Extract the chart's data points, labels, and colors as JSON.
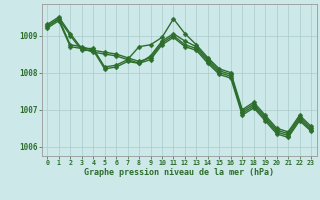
{
  "xlabel": "Graphe pression niveau de la mer (hPa)",
  "background_color": "#cce8e8",
  "grid_color": "#aacccc",
  "line_color": "#2d6e2d",
  "tick_label_color": "#2d6e2d",
  "hours": [
    0,
    1,
    2,
    3,
    4,
    5,
    6,
    7,
    8,
    9,
    10,
    11,
    12,
    13,
    14,
    15,
    16,
    17,
    18,
    19,
    20,
    21,
    22,
    23
  ],
  "line1": [
    1009.3,
    1009.5,
    1009.05,
    1008.65,
    1008.65,
    1008.15,
    1008.2,
    1008.35,
    1008.7,
    1008.75,
    1008.95,
    1009.45,
    1009.05,
    1008.75,
    1008.4,
    1008.1,
    1008.0,
    1007.0,
    1007.2,
    1006.85,
    1006.5,
    1006.4,
    1006.85,
    1006.55
  ],
  "line2": [
    1009.25,
    1009.45,
    1009.0,
    1008.6,
    1008.6,
    1008.1,
    1008.15,
    1008.3,
    1008.25,
    1008.45,
    1008.85,
    1009.05,
    1008.85,
    1008.7,
    1008.35,
    1008.05,
    1007.95,
    1006.95,
    1007.15,
    1006.8,
    1006.45,
    1006.35,
    1006.8,
    1006.5
  ],
  "line3": [
    1009.25,
    1009.45,
    1008.75,
    1008.7,
    1008.6,
    1008.55,
    1008.5,
    1008.4,
    1008.3,
    1008.4,
    1008.8,
    1009.0,
    1008.75,
    1008.65,
    1008.3,
    1008.0,
    1007.9,
    1006.9,
    1007.1,
    1006.75,
    1006.4,
    1006.3,
    1006.75,
    1006.45
  ],
  "line4": [
    1009.2,
    1009.4,
    1008.7,
    1008.65,
    1008.55,
    1008.5,
    1008.45,
    1008.35,
    1008.25,
    1008.35,
    1008.75,
    1008.95,
    1008.7,
    1008.6,
    1008.25,
    1007.95,
    1007.85,
    1006.85,
    1007.05,
    1006.7,
    1006.35,
    1006.25,
    1006.7,
    1006.42
  ],
  "ylim": [
    1005.75,
    1009.85
  ],
  "yticks": [
    1006,
    1007,
    1008,
    1009
  ],
  "marker": "D",
  "marker_size": 2.5,
  "line_width": 1.0
}
